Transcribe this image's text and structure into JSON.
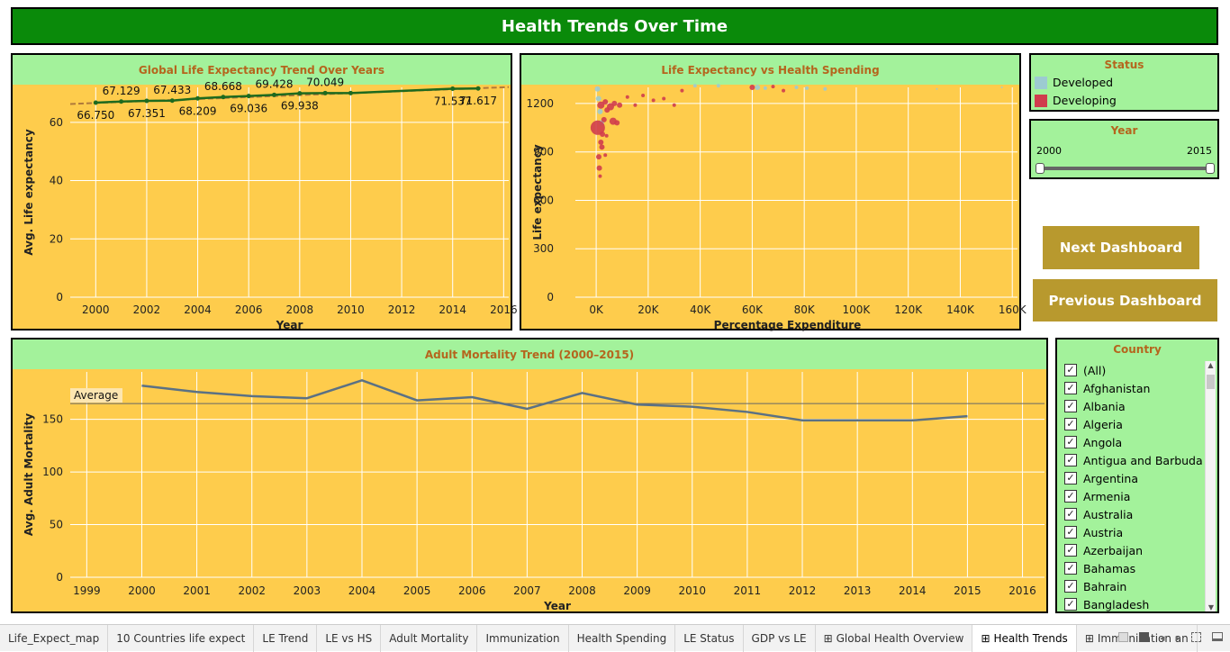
{
  "dashboard_title": "Health Trends Over Time",
  "panels": {
    "le_trend": {
      "title": "Global Life Expectancy Trend Over Years"
    },
    "le_vs_hs": {
      "title": "Life Expectancy vs Health Spending"
    },
    "mortality": {
      "title": "Adult Mortality Trend (2000–2015)"
    }
  },
  "status_legend": {
    "title": "Status",
    "items": [
      {
        "label": "Developed",
        "color": "#9ccbd1"
      },
      {
        "label": "Developing",
        "color": "#d03d4d"
      }
    ]
  },
  "year_filter": {
    "title": "Year",
    "min_label": "2000",
    "max_label": "2015"
  },
  "buttons": {
    "next": "Next Dashboard",
    "previous": "Previous Dashboard"
  },
  "country_filter": {
    "title": "Country",
    "items": [
      "(All)",
      "Afghanistan",
      "Albania",
      "Algeria",
      "Angola",
      "Antigua and Barbuda",
      "Argentina",
      "Armenia",
      "Australia",
      "Austria",
      "Azerbaijan",
      "Bahamas",
      "Bahrain",
      "Bangladesh"
    ]
  },
  "tabs": [
    {
      "label": "Life_Expect_map",
      "icon": ""
    },
    {
      "label": "10 Countries life expect",
      "icon": ""
    },
    {
      "label": "LE Trend",
      "icon": ""
    },
    {
      "label": "LE vs HS",
      "icon": ""
    },
    {
      "label": "Adult Mortality",
      "icon": ""
    },
    {
      "label": "Immunization",
      "icon": ""
    },
    {
      "label": "Health Spending",
      "icon": ""
    },
    {
      "label": "LE Status",
      "icon": ""
    },
    {
      "label": "GDP vs LE",
      "icon": ""
    },
    {
      "label": "Global Health Overview",
      "icon": "⊞"
    },
    {
      "label": "Health Trends",
      "icon": "⊞",
      "active": true
    },
    {
      "label": "Immunization an",
      "icon": "⊞"
    }
  ],
  "chart_data": [
    {
      "type": "line",
      "title": "Global Life Expectancy Trend Over Years",
      "xlabel": "Year",
      "ylabel": "Avg. Life expectancy",
      "x": [
        2000,
        2001,
        2002,
        2003,
        2004,
        2005,
        2006,
        2007,
        2008,
        2009,
        2010,
        2014,
        2015
      ],
      "values": [
        66.75,
        67.129,
        67.351,
        67.433,
        68.209,
        68.668,
        69.036,
        69.428,
        69.938,
        70.049,
        70.049,
        71.537,
        71.617
      ],
      "labels": [
        "66.750",
        "67.129",
        "67.351",
        "67.433",
        "68.209",
        "68.668",
        "69.036",
        "69.428",
        "69.938",
        "70.049",
        "",
        "71.537",
        "71.617"
      ],
      "xticks": [
        2000,
        2002,
        2004,
        2006,
        2008,
        2010,
        2012,
        2014,
        2016
      ],
      "yticks": [
        0,
        20,
        40,
        60
      ],
      "xlim": [
        1999,
        2016.2
      ],
      "ylim": [
        0,
        72
      ],
      "trend_line": true
    },
    {
      "type": "scatter",
      "title": "Life Expectancy vs Health Spending",
      "xlabel": "Percentage Expenditure",
      "ylabel": "Life expectancy",
      "xticks": [
        0,
        20000,
        40000,
        60000,
        80000,
        100000,
        120000,
        140000,
        160000
      ],
      "xtick_labels": [
        "0K",
        "20K",
        "40K",
        "60K",
        "80K",
        "100K",
        "120K",
        "140K",
        "160K"
      ],
      "yticks": [
        0,
        300,
        600,
        900,
        1200
      ],
      "xlim": [
        -8000,
        162000
      ],
      "ylim": [
        0,
        1300
      ],
      "series": [
        {
          "name": "Developed",
          "points": [
            [
              500,
              1290,
              3
            ],
            [
              900,
              1230,
              3
            ],
            [
              1500,
              1150,
              3
            ],
            [
              2000,
              1080,
              3
            ],
            [
              38000,
              1310,
              2
            ],
            [
              47000,
              1310,
              2
            ],
            [
              62000,
              1300,
              3
            ],
            [
              65000,
              1295,
              2
            ],
            [
              77000,
              1300,
              2
            ],
            [
              81000,
              1295,
              2
            ],
            [
              88000,
              1290,
              2
            ],
            [
              131000,
              1290,
              1
            ],
            [
              156000,
              1300,
              1
            ]
          ]
        },
        {
          "name": "Developing",
          "points": [
            [
              600,
              1050,
              8
            ],
            [
              1800,
              1190,
              4
            ],
            [
              3500,
              1210,
              3
            ],
            [
              5500,
              1180,
              4
            ],
            [
              7000,
              1200,
              3
            ],
            [
              9000,
              1190,
              3
            ],
            [
              4200,
              1160,
              3
            ],
            [
              3000,
              1100,
              3
            ],
            [
              6500,
              1090,
              4
            ],
            [
              8000,
              1080,
              3
            ],
            [
              1000,
              870,
              3
            ],
            [
              1200,
              800,
              3
            ],
            [
              1500,
              750,
              2
            ],
            [
              2200,
              930,
              3
            ],
            [
              3500,
              880,
              2
            ],
            [
              12000,
              1240,
              2
            ],
            [
              15000,
              1190,
              2
            ],
            [
              18000,
              1250,
              2
            ],
            [
              22000,
              1220,
              2
            ],
            [
              26000,
              1230,
              2
            ],
            [
              30000,
              1190,
              2
            ],
            [
              33000,
              1280,
              2
            ],
            [
              60000,
              1300,
              3
            ],
            [
              68000,
              1305,
              2
            ],
            [
              72000,
              1280,
              2
            ],
            [
              2400,
              1010,
              3
            ],
            [
              1800,
              960,
              3
            ],
            [
              4000,
              1000,
              2
            ]
          ]
        }
      ]
    },
    {
      "type": "line",
      "title": "Adult Mortality Trend (2000–2015)",
      "xlabel": "Year",
      "ylabel": "Avg. Adult Mortality",
      "x": [
        2000,
        2001,
        2002,
        2003,
        2004,
        2005,
        2006,
        2007,
        2008,
        2009,
        2010,
        2011,
        2012,
        2013,
        2014,
        2015
      ],
      "values": [
        182,
        176,
        172,
        170,
        187,
        168,
        171,
        160,
        175,
        164,
        162,
        157,
        149,
        149,
        149,
        153
      ],
      "xticks": [
        1999,
        2000,
        2001,
        2002,
        2003,
        2004,
        2005,
        2006,
        2007,
        2008,
        2009,
        2010,
        2011,
        2012,
        2013,
        2014,
        2015,
        2016
      ],
      "yticks": [
        0,
        50,
        100,
        150
      ],
      "xlim": [
        1998.7,
        2016.4
      ],
      "ylim": [
        0,
        195
      ],
      "reference_line": {
        "label": "Average",
        "value": 165
      }
    }
  ]
}
